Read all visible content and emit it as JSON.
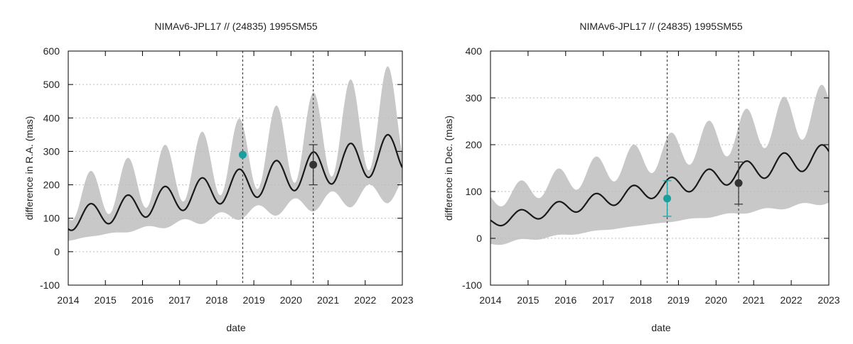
{
  "colors": {
    "band": "#c8c8c8",
    "curve": "#1a1a1a",
    "grid": "#bdbdbd",
    "axis": "#000000",
    "vline": "#444444",
    "obs_a": "#1b9e9e",
    "obs_b": "#333333"
  },
  "chart_data": [
    {
      "type": "line",
      "title": "NIMAv6-JPL17 // (24835) 1995SM55",
      "xlabel": "date",
      "ylabel": "difference in R.A. (mas)",
      "xlim": [
        2014,
        2023
      ],
      "ylim": [
        -100,
        600
      ],
      "xticks": [
        2014,
        2015,
        2016,
        2017,
        2018,
        2019,
        2020,
        2021,
        2022,
        2023
      ],
      "yticks": [
        -100,
        0,
        100,
        200,
        300,
        400,
        500,
        600
      ],
      "grid": true,
      "model": {
        "trend_start": 95,
        "trend_end": 300,
        "amp_start": 33,
        "amp_end": 60,
        "band_start": 60,
        "band_end": 115,
        "band_amp_start": 30,
        "band_amp_end": 95,
        "peak_phase": 2014.6
      },
      "vlines": [
        2018.7,
        2020.6
      ],
      "points": [
        {
          "x": 2018.7,
          "y": 290,
          "err": 0,
          "color": "obs_a"
        },
        {
          "x": 2020.6,
          "y": 260,
          "err": 60,
          "color": "obs_b"
        }
      ]
    },
    {
      "type": "line",
      "title": "NIMAv6-JPL17 // (24835) 1995SM55",
      "xlabel": "date",
      "ylabel": "difference in Dec. (mas)",
      "xlim": [
        2014,
        2023
      ],
      "ylim": [
        -100,
        400
      ],
      "xticks": [
        2014,
        2015,
        2016,
        2017,
        2018,
        2019,
        2020,
        2021,
        2022,
        2023
      ],
      "yticks": [
        -100,
        0,
        100,
        200,
        300,
        400
      ],
      "grid": true,
      "model": {
        "trend_start": 35,
        "trend_end": 178,
        "amp_start": 12,
        "amp_end": 25,
        "band_start": 48,
        "band_end": 100,
        "band_amp_start": 8,
        "band_amp_end": 30,
        "peak_phase": 2014.8
      },
      "vlines": [
        2018.7,
        2020.6
      ],
      "points": [
        {
          "x": 2018.7,
          "y": 85,
          "err": 38,
          "color": "obs_a"
        },
        {
          "x": 2020.6,
          "y": 118,
          "err": 45,
          "color": "obs_b"
        }
      ]
    }
  ]
}
